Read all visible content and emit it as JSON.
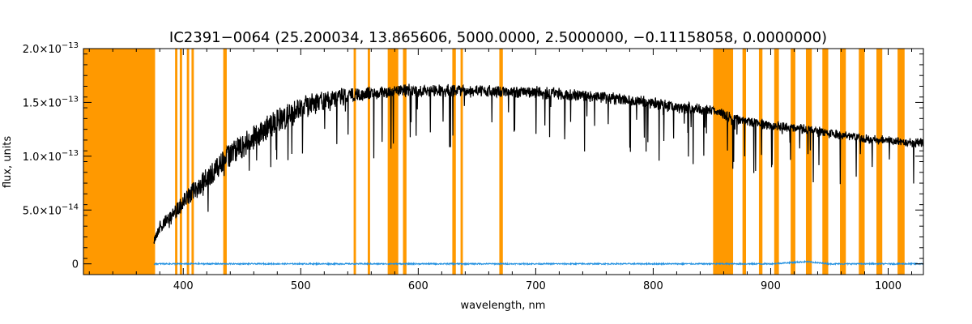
{
  "chart_data": {
    "type": "line",
    "title": "IC2391−0064   (25.200034, 13.865606, 5000.0000, 2.5000000, −0.11158058, 0.0000000)",
    "xlabel": "wavelength, nm",
    "ylabel": "flux, units",
    "xlim": [
      315,
      1030
    ],
    "ylim": [
      -1e-14,
      2e-13
    ],
    "x_ticks": [
      400,
      500,
      600,
      700,
      800,
      900,
      1000
    ],
    "x_tick_labels": [
      "400",
      "500",
      "600",
      "700",
      "800",
      "900",
      "1000"
    ],
    "y_ticks": [
      0,
      5e-14,
      1e-13,
      1.5e-13,
      2e-13
    ],
    "y_tick_labels": [
      {
        "mantissa": "0",
        "exponent": ""
      },
      {
        "mantissa": "5.0×10",
        "exponent": "−14"
      },
      {
        "mantissa": "1.0×10",
        "exponent": "−13"
      },
      {
        "mantissa": "1.5×10",
        "exponent": "−13"
      },
      {
        "mantissa": "2.0×10",
        "exponent": "−13"
      }
    ],
    "grid": false,
    "series": [
      {
        "role": "flux",
        "color": "#000000",
        "x": [
          375,
          380,
          390,
          400,
          410,
          420,
          430,
          440,
          450,
          460,
          470,
          480,
          490,
          500,
          510,
          520,
          530,
          540,
          550,
          560,
          570,
          580,
          590,
          600,
          620,
          640,
          660,
          680,
          700,
          720,
          740,
          760,
          780,
          800,
          820,
          840,
          852,
          870,
          880,
          900,
          920,
          940,
          960,
          980,
          1000,
          1020,
          1030
        ],
        "y": [
          2.5e-14,
          4e-14,
          5e-14,
          6.5e-14,
          7.8e-14,
          9e-14,
          1e-13,
          1.12e-13,
          1.2e-13,
          1.28e-13,
          1.36e-13,
          1.43e-13,
          1.5e-13,
          1.55e-13,
          1.58e-13,
          1.6e-13,
          1.62e-13,
          1.63e-13,
          1.63e-13,
          1.64e-13,
          1.64e-13,
          1.65e-13,
          1.66e-13,
          1.66e-13,
          1.66e-13,
          1.66e-13,
          1.65e-13,
          1.65e-13,
          1.64e-13,
          1.63e-13,
          1.61e-13,
          1.59e-13,
          1.56e-13,
          1.54e-13,
          1.5e-13,
          1.48e-13,
          1.47e-13,
          1.38e-13,
          1.36e-13,
          1.33e-13,
          1.3e-13,
          1.27e-13,
          1.23e-13,
          1.2e-13,
          1.18e-13,
          1.16e-13,
          1.16e-13
        ]
      },
      {
        "role": "error",
        "color": "#1f8fe0",
        "x": [
          375,
          500,
          600,
          700,
          800,
          900,
          930,
          950,
          1000,
          1030
        ],
        "y": [
          0,
          0,
          0,
          0,
          0,
          0,
          2e-15,
          0,
          0,
          0
        ]
      }
    ],
    "masked_regions": {
      "color": "#ff9900",
      "ranges": [
        [
          315,
          376
        ],
        [
          393,
          395
        ],
        [
          397,
          399
        ],
        [
          403,
          405
        ],
        [
          407,
          409
        ],
        [
          434,
          437
        ],
        [
          545,
          547
        ],
        [
          557,
          559
        ],
        [
          574,
          583
        ],
        [
          587,
          590
        ],
        [
          629,
          632
        ],
        [
          636,
          638
        ],
        [
          669,
          672
        ],
        [
          851,
          868
        ],
        [
          876,
          879
        ],
        [
          890,
          893
        ],
        [
          903,
          907
        ],
        [
          917,
          921
        ],
        [
          930,
          935
        ],
        [
          944,
          949
        ],
        [
          959,
          964
        ],
        [
          975,
          980
        ],
        [
          990,
          995
        ],
        [
          1008,
          1014
        ]
      ]
    }
  }
}
